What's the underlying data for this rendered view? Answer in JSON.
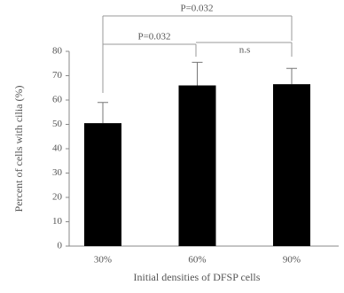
{
  "chart_data": {
    "type": "bar",
    "categories": [
      "30%",
      "60%",
      "90%"
    ],
    "values": [
      50.5,
      66,
      66.5
    ],
    "errors": [
      8.5,
      9.5,
      6.5
    ],
    "color": "#000000",
    "xlabel": "Initial densities of DFSP cells",
    "ylabel": "Percent of cells with cilia (%)",
    "ylim": [
      0,
      80
    ],
    "yticks": [
      0,
      10,
      20,
      30,
      40,
      50,
      60,
      70,
      80
    ],
    "annotations": [
      "P=0.032",
      "P=0.032",
      "n.s"
    ]
  }
}
